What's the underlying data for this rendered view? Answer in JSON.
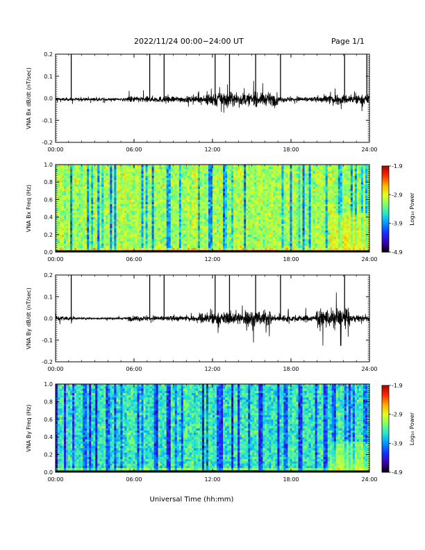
{
  "header": {
    "title": "2022/11/24  00:00−24:00 UT",
    "page": "Page 1/1"
  },
  "xlabel_main": "Universal Time (hh:mm)",
  "colors": {
    "trace": "#000000",
    "colormap": [
      "#000000",
      "#3b00a8",
      "#1a2cff",
      "#0093ff",
      "#26e3d3",
      "#7dff6e",
      "#e0ff26",
      "#ffb000",
      "#ff2b00",
      "#b00000"
    ]
  },
  "chart_data": [
    {
      "type": "line",
      "name": "bx-dbdt",
      "ylabel": "VNA Bx dB/dt (nT/sec)",
      "xlim": [
        0,
        24
      ],
      "ylim": [
        -0.2,
        0.2
      ],
      "x_ticks": [
        "00:00",
        "06:00",
        "12:00",
        "18:00",
        "24:00"
      ],
      "y_ticks": [
        "0.2",
        "0.1",
        "0.0",
        "-0.1",
        "-0.2"
      ],
      "baseline": -0.005,
      "spikes_hours": [
        1.2,
        7.2,
        8.3,
        12.2,
        13.3,
        15.3,
        17.2,
        22.1,
        23.8
      ],
      "activity": [
        {
          "start": 0.0,
          "end": 5.5,
          "amp": 0.012
        },
        {
          "start": 5.5,
          "end": 11.5,
          "amp": 0.025
        },
        {
          "start": 11.5,
          "end": 13.5,
          "amp": 0.06
        },
        {
          "start": 13.5,
          "end": 17.0,
          "amp": 0.05
        },
        {
          "start": 17.0,
          "end": 20.5,
          "amp": 0.02
        },
        {
          "start": 20.5,
          "end": 24.0,
          "amp": 0.04
        }
      ]
    },
    {
      "type": "heatmap",
      "name": "bx-spectrogram",
      "ylabel": "VNA Bx Freq (Hz)",
      "xlim": [
        0,
        24
      ],
      "ylim": [
        0,
        1.0
      ],
      "x_ticks": [
        "00:00",
        "06:00",
        "12:00",
        "18:00",
        "24:00"
      ],
      "y_ticks": [
        "1.0",
        "0.8",
        "0.6",
        "0.4",
        "0.2",
        "0.0"
      ],
      "colorbar": {
        "label": "Log₁₀ Power",
        "min": -4.9,
        "max": -1.9,
        "ticks": [
          "-1.9",
          "-2.9",
          "-3.9",
          "-4.9"
        ]
      },
      "background_level": -3.1,
      "low_freq_hot": {
        "start": 6.0,
        "end": 17.0,
        "level": -2.1
      },
      "enhanced_region": {
        "start": 21.0,
        "end": 24.0,
        "fmax": 0.45,
        "level": -2.6
      }
    },
    {
      "type": "line",
      "name": "by-dbdt",
      "ylabel": "VNA By dB/dt (nT/sec)",
      "xlim": [
        0,
        24
      ],
      "ylim": [
        -0.2,
        0.2
      ],
      "x_ticks": [
        "00:00",
        "06:00",
        "12:00",
        "18:00",
        "24:00"
      ],
      "y_ticks": [
        "0.2",
        "0.1",
        "0.0",
        "-0.1",
        "-0.2"
      ],
      "baseline": 0.0,
      "spikes_hours": [
        1.2,
        7.2,
        8.3,
        12.2,
        13.3,
        15.3,
        17.2,
        22.1
      ],
      "activity": [
        {
          "start": 0.0,
          "end": 1.5,
          "amp": 0.02
        },
        {
          "start": 1.5,
          "end": 5.5,
          "amp": 0.008
        },
        {
          "start": 5.5,
          "end": 11.0,
          "amp": 0.02
        },
        {
          "start": 11.0,
          "end": 14.5,
          "amp": 0.05
        },
        {
          "start": 14.5,
          "end": 16.5,
          "amp": 0.07
        },
        {
          "start": 16.5,
          "end": 20.0,
          "amp": 0.025
        },
        {
          "start": 20.0,
          "end": 22.5,
          "amp": 0.08
        },
        {
          "start": 22.5,
          "end": 24.0,
          "amp": 0.025
        }
      ]
    },
    {
      "type": "heatmap",
      "name": "by-spectrogram",
      "ylabel": "VNA By Freq (Hz)",
      "xlim": [
        0,
        24
      ],
      "ylim": [
        0,
        1.0
      ],
      "x_ticks": [
        "00:00",
        "06:00",
        "12:00",
        "18:00",
        "24:00"
      ],
      "y_ticks": [
        "1.0",
        "0.8",
        "0.6",
        "0.4",
        "0.2",
        "0.0"
      ],
      "colorbar": {
        "label": "Log₁₀ Power",
        "min": -4.9,
        "max": -1.9,
        "ticks": [
          "-1.9",
          "-2.9",
          "-3.9",
          "-4.9"
        ]
      },
      "background_level": -3.5,
      "low_freq_hot": {
        "start": 5.5,
        "end": 16.0,
        "level": -2.3
      },
      "enhanced_region": {
        "start": 21.0,
        "end": 24.0,
        "fmax": 0.35,
        "level": -2.7
      }
    }
  ]
}
